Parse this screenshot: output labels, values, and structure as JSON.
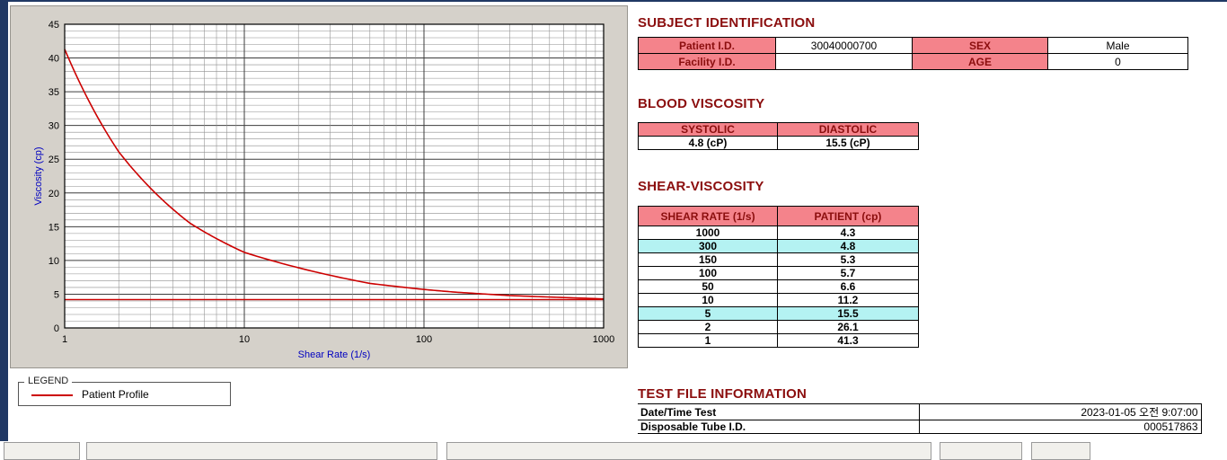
{
  "subject_identification": {
    "title": "SUBJECT IDENTIFICATION",
    "rows": [
      {
        "label": "Patient I.D.",
        "value": "30040000700",
        "label2": "SEX",
        "value2": "Male"
      },
      {
        "label": "Facility I.D.",
        "value": "",
        "label2": "AGE",
        "value2": "0"
      }
    ]
  },
  "blood_viscosity": {
    "title": "BLOOD VISCOSITY",
    "headers": [
      "SYSTOLIC",
      "DIASTOLIC"
    ],
    "values": [
      "4.8 (cP)",
      "15.5 (cP)"
    ]
  },
  "shear_viscosity": {
    "title": "SHEAR-VISCOSITY",
    "headers": [
      "SHEAR RATE (1/s)",
      "PATIENT (cp)"
    ],
    "rows": [
      {
        "shear_rate": "1000",
        "patient": "4.3",
        "highlight": false
      },
      {
        "shear_rate": "300",
        "patient": "4.8",
        "highlight": true
      },
      {
        "shear_rate": "150",
        "patient": "5.3",
        "highlight": false
      },
      {
        "shear_rate": "100",
        "patient": "5.7",
        "highlight": false
      },
      {
        "shear_rate": "50",
        "patient": "6.6",
        "highlight": false
      },
      {
        "shear_rate": "10",
        "patient": "11.2",
        "highlight": false
      },
      {
        "shear_rate": "5",
        "patient": "15.5",
        "highlight": true
      },
      {
        "shear_rate": "2",
        "patient": "26.1",
        "highlight": false
      },
      {
        "shear_rate": "1",
        "patient": "41.3",
        "highlight": false
      }
    ]
  },
  "test_file_information": {
    "title": "TEST FILE INFORMATION",
    "rows": [
      {
        "label": "Date/Time Test",
        "value": "2023-01-05  오전 9:07:00"
      },
      {
        "label": "Disposable Tube I.D.",
        "value": "000517863"
      }
    ]
  },
  "legend": {
    "caption": "LEGEND",
    "series_label": "Patient Profile",
    "series_color": "#cc0000"
  },
  "chart_data": {
    "type": "line",
    "title": "",
    "xlabel": "Shear Rate (1/s)",
    "ylabel": "Viscosity (cp)",
    "x_scale": "log",
    "xlim": [
      1,
      1000
    ],
    "ylim": [
      0,
      45
    ],
    "y_major_step": 5,
    "y_minor_step": 1,
    "x_ticks": [
      1,
      10,
      100,
      1000
    ],
    "grid": true,
    "legend_position": "below-left",
    "series": [
      {
        "name": "Patient Profile",
        "color": "#cc0000",
        "x": [
          1,
          2,
          5,
          10,
          50,
          100,
          150,
          300,
          1000
        ],
        "y": [
          41.3,
          26.1,
          15.5,
          11.2,
          6.6,
          5.7,
          5.3,
          4.8,
          4.3
        ]
      }
    ],
    "reference_line": {
      "y": 4.2,
      "color": "#cc0000"
    }
  },
  "colors": {
    "header_pink": "#F4838B",
    "header_text": "#8B0E0E",
    "highlight_cyan": "#B4F2F2",
    "axis_label_blue": "#0000C0",
    "navy": "#203864",
    "panel_gray": "#D5D1CA"
  }
}
